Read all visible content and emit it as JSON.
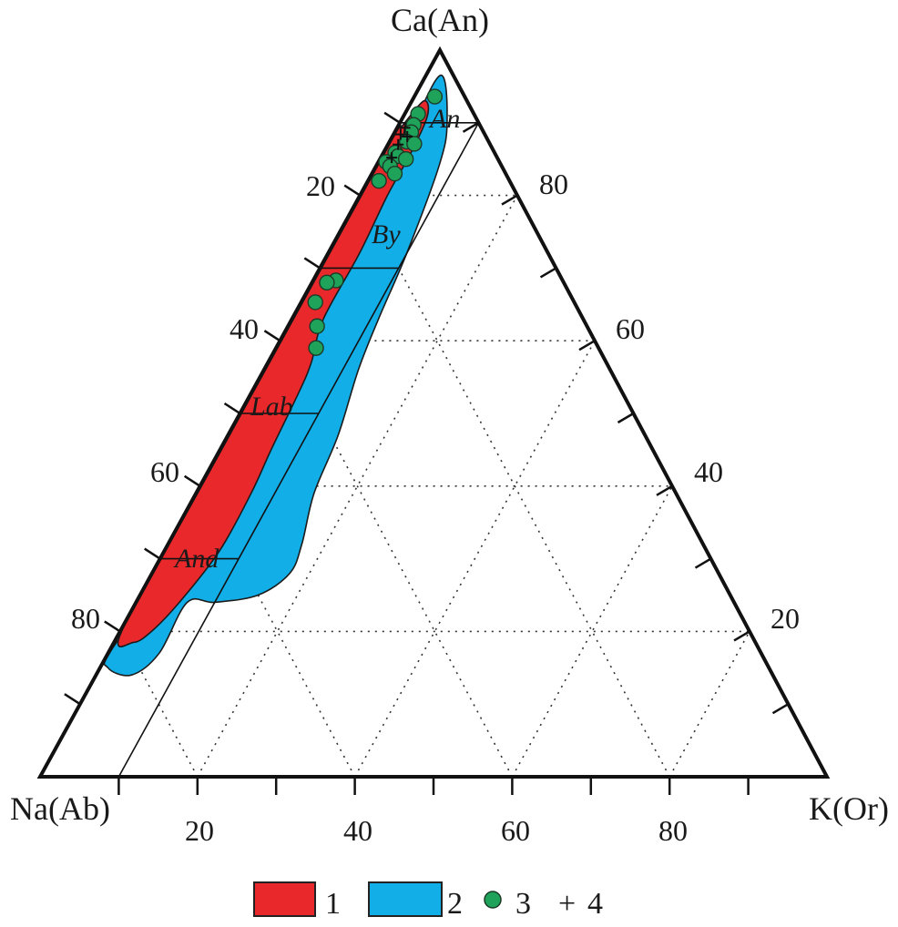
{
  "chart_data": {
    "type": "ternary",
    "title": "",
    "vertices": {
      "top": "Ca(An)",
      "left": "Na(Ab)",
      "right": "K(Or)"
    },
    "axes": {
      "left_edge_ticks": [
        "20",
        "40",
        "60",
        "80"
      ],
      "right_edge_ticks": [
        "80",
        "60",
        "40",
        "20"
      ],
      "bottom_edge_ticks": [
        "20",
        "40",
        "60",
        "80"
      ]
    },
    "grid": "dotted, every 20",
    "field_labels": [
      "An",
      "By",
      "Lab",
      "And"
    ],
    "colors": {
      "series_1": "#e8282b",
      "series_2": "#12aee8",
      "series_3": "#1fa35a"
    },
    "regions": [
      {
        "legend": "1",
        "outline_an_or": [
          [
            89.5,
            0.5
          ],
          [
            93,
            1.5
          ],
          [
            91,
            3
          ],
          [
            86,
            3.5
          ],
          [
            80,
            3.5
          ],
          [
            72,
            4
          ],
          [
            63,
            4
          ],
          [
            57,
            5.5
          ],
          [
            53,
            6
          ],
          [
            45,
            6.5
          ],
          [
            39,
            7
          ],
          [
            31,
            7
          ],
          [
            24,
            5.5
          ],
          [
            20,
            4
          ],
          [
            18.5,
            2.5
          ],
          [
            20,
            0.2
          ],
          [
            40,
            0.2
          ],
          [
            60,
            0.2
          ],
          [
            80,
            0.2
          ],
          [
            89,
            0.2
          ]
        ]
      },
      {
        "legend": "2",
        "outline_an_or": [
          [
            96.5,
            1.8
          ],
          [
            90,
            6
          ],
          [
            84,
            8
          ],
          [
            72,
            10
          ],
          [
            63,
            11
          ],
          [
            56,
            12
          ],
          [
            47,
            14
          ],
          [
            39,
            15
          ],
          [
            32,
            17
          ],
          [
            28,
            17.5
          ],
          [
            25,
            15
          ],
          [
            24,
            10
          ],
          [
            24,
            6.5
          ],
          [
            17,
            6.5
          ],
          [
            14,
            4.5
          ],
          [
            15,
            1
          ],
          [
            17.5,
            0.2
          ],
          [
            30,
            2
          ],
          [
            50,
            2
          ],
          [
            72,
            2
          ],
          [
            87,
            2
          ]
        ]
      }
    ],
    "series": [
      {
        "name": "3",
        "marker": "circle",
        "points_an_or": [
          [
            93.6,
            2.6
          ],
          [
            91.2,
            1.7
          ],
          [
            89.7,
            1.9
          ],
          [
            88.7,
            2.1
          ],
          [
            87.4,
            2.2
          ],
          [
            87.1,
            3.3
          ],
          [
            85.9,
            1.5
          ],
          [
            85.4,
            2.1
          ],
          [
            85.0,
            3.3
          ],
          [
            84.6,
            1.0
          ],
          [
            84.0,
            1.8
          ],
          [
            83.0,
            2.9
          ],
          [
            82.0,
            1.4
          ],
          [
            68.3,
            2.9
          ],
          [
            68.0,
            1.9
          ],
          [
            65.3,
            1.8
          ],
          [
            62.0,
            3.7
          ],
          [
            59.0,
            5.1
          ]
        ]
      },
      {
        "name": "4",
        "marker": "plus",
        "points_an_or": [
          [
            89.3,
            1.0
          ],
          [
            88.4,
            0.9
          ],
          [
            88.1,
            1.9
          ],
          [
            87.0,
            1.3
          ],
          [
            85.2,
            1.4
          ]
        ]
      }
    ],
    "ylim": [
      0,
      100
    ]
  }
}
